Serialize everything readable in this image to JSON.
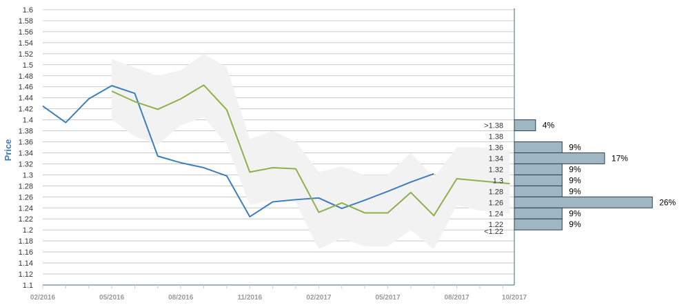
{
  "colors": {
    "actual": "#3a7ebf",
    "forecast": "#8db04a",
    "band": "#f2f2f2",
    "bar_fill": "#9fb6c3",
    "bar_stroke": "#2c3e50",
    "grid": "#c8c8c8",
    "axis": "#2f6f7a",
    "ylabel": "#3a7ebf"
  },
  "chart_data": {
    "type": "line",
    "ylabel": "Price",
    "ylim": [
      1.1,
      1.6
    ],
    "y_ticks": [
      "1.6",
      "1.58",
      "1.56",
      "1.54",
      "1.52",
      "1.5",
      "1.48",
      "1.46",
      "1.44",
      "1.42",
      "1.4",
      "1.38",
      "1.36",
      "1.34",
      "1.32",
      "1.3",
      "1.28",
      "1.26",
      "1.24",
      "1.22",
      "1.2",
      "1.18",
      "1.16",
      "1.14",
      "1.12",
      "1.1"
    ],
    "x_range": [
      0,
      20.5
    ],
    "x_ticks": [
      {
        "label": "02/2016",
        "pos": 0
      },
      {
        "label": "05/2016",
        "pos": 3
      },
      {
        "label": "08/2016",
        "pos": 6
      },
      {
        "label": "11/2016",
        "pos": 9
      },
      {
        "label": "02/2017",
        "pos": 12
      },
      {
        "label": "05/2017",
        "pos": 15
      },
      {
        "label": "08/2017",
        "pos": 18
      },
      {
        "label": "10/2017",
        "pos": 20.5
      }
    ],
    "series": [
      {
        "key": "actual",
        "x": [
          0,
          1,
          2,
          3,
          4,
          5,
          6,
          7,
          8,
          9,
          10,
          11,
          12,
          13,
          14,
          15,
          16,
          17
        ],
        "values": [
          1.425,
          1.395,
          1.438,
          1.462,
          1.448,
          1.334,
          1.322,
          1.313,
          1.298,
          1.224,
          1.251,
          1.255,
          1.258,
          1.239,
          1.254,
          1.27,
          1.287,
          1.302
        ]
      },
      {
        "key": "forecast",
        "x": [
          3,
          4,
          5,
          6,
          7,
          8,
          9,
          10,
          11,
          12,
          13,
          14,
          15,
          16,
          17,
          18,
          19,
          20.3
        ],
        "values": [
          1.452,
          1.433,
          1.419,
          1.438,
          1.463,
          1.418,
          1.305,
          1.313,
          1.311,
          1.232,
          1.249,
          1.231,
          1.231,
          1.268,
          1.226,
          1.293,
          1.289,
          1.284
        ]
      }
    ],
    "band": {
      "x": [
        3,
        4,
        5,
        6,
        7,
        8,
        9,
        10,
        11,
        12,
        13,
        14,
        15,
        16,
        17,
        18,
        19,
        20.3
      ],
      "upper": [
        1.51,
        1.495,
        1.48,
        1.49,
        1.52,
        1.495,
        1.365,
        1.38,
        1.36,
        1.305,
        1.315,
        1.3,
        1.3,
        1.34,
        1.295,
        1.35,
        1.35,
        1.345
      ],
      "lower": [
        1.4,
        1.37,
        1.355,
        1.39,
        1.405,
        1.355,
        1.245,
        1.255,
        1.25,
        1.165,
        1.185,
        1.17,
        1.17,
        1.2,
        1.165,
        1.245,
        1.235,
        1.23
      ]
    },
    "histogram": {
      "bins": [
        {
          "label": ">1.38",
          "y_low": 1.38,
          "y_high": 1.4,
          "percent": 4,
          "pct_label": "4%"
        },
        {
          "label": "1.38",
          "y_low": 1.36,
          "y_high": 1.38,
          "percent": 0,
          "pct_label": ""
        },
        {
          "label": "1.36",
          "y_low": 1.34,
          "y_high": 1.36,
          "percent": 9,
          "pct_label": "9%"
        },
        {
          "label": "1.34",
          "y_low": 1.32,
          "y_high": 1.34,
          "percent": 17,
          "pct_label": "17%"
        },
        {
          "label": "1.32",
          "y_low": 1.3,
          "y_high": 1.32,
          "percent": 9,
          "pct_label": "9%"
        },
        {
          "label": "1.3",
          "y_low": 1.28,
          "y_high": 1.3,
          "percent": 9,
          "pct_label": "9%"
        },
        {
          "label": "1.28",
          "y_low": 1.26,
          "y_high": 1.28,
          "percent": 9,
          "pct_label": "9%"
        },
        {
          "label": "1.26",
          "y_low": 1.24,
          "y_high": 1.26,
          "percent": 26,
          "pct_label": "26%"
        },
        {
          "label": "1.24",
          "y_low": 1.22,
          "y_high": 1.24,
          "percent": 9,
          "pct_label": "9%"
        },
        {
          "label": "1.22",
          "y_low": 1.2,
          "y_high": 1.22,
          "percent": 9,
          "pct_label": "9%"
        },
        {
          "label": "<1.22",
          "y_low": 1.2,
          "y_high": 1.2,
          "percent": 0,
          "pct_label": ""
        }
      ]
    }
  }
}
